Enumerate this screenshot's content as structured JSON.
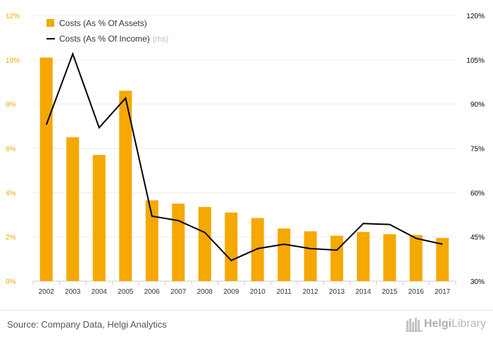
{
  "chart_data": {
    "type": "bar-line-combo",
    "categories": [
      "2002",
      "2003",
      "2004",
      "2005",
      "2006",
      "2007",
      "2008",
      "2009",
      "2010",
      "2011",
      "2012",
      "2013",
      "2014",
      "2015",
      "2016",
      "2017"
    ],
    "series": [
      {
        "name": "Costs (As % Of Assets)",
        "type": "bar",
        "axis": "left",
        "color": "#f5a800",
        "values": [
          10.1,
          6.5,
          5.7,
          8.6,
          3.65,
          3.5,
          3.35,
          3.1,
          2.85,
          2.38,
          2.25,
          2.05,
          2.22,
          2.12,
          2.08,
          1.95
        ]
      },
      {
        "name": "Costs (As % Of Income)",
        "name_suffix": "(rhs)",
        "type": "line",
        "axis": "right",
        "color": "#000000",
        "values": [
          83.0,
          107.0,
          82.0,
          92.0,
          52.0,
          50.5,
          46.5,
          37.0,
          41.0,
          42.5,
          41.0,
          40.5,
          49.5,
          49.2,
          44.5,
          42.5
        ]
      }
    ],
    "y_left": {
      "ticks": [
        "0%",
        "2%",
        "4%",
        "6%",
        "8%",
        "10%",
        "12%"
      ],
      "range": [
        0,
        12
      ],
      "color": "#f5a800"
    },
    "y_right": {
      "ticks": [
        "30%",
        "45%",
        "60%",
        "75%",
        "90%",
        "105%",
        "120%"
      ],
      "range": [
        30,
        120
      ],
      "color": "#000000"
    },
    "grid": true,
    "legend": "top-left"
  },
  "footer": {
    "source": "Source: Company Data, Helgi Analytics",
    "logo_prefix": "Helgi",
    "logo_suffix": "Library"
  }
}
